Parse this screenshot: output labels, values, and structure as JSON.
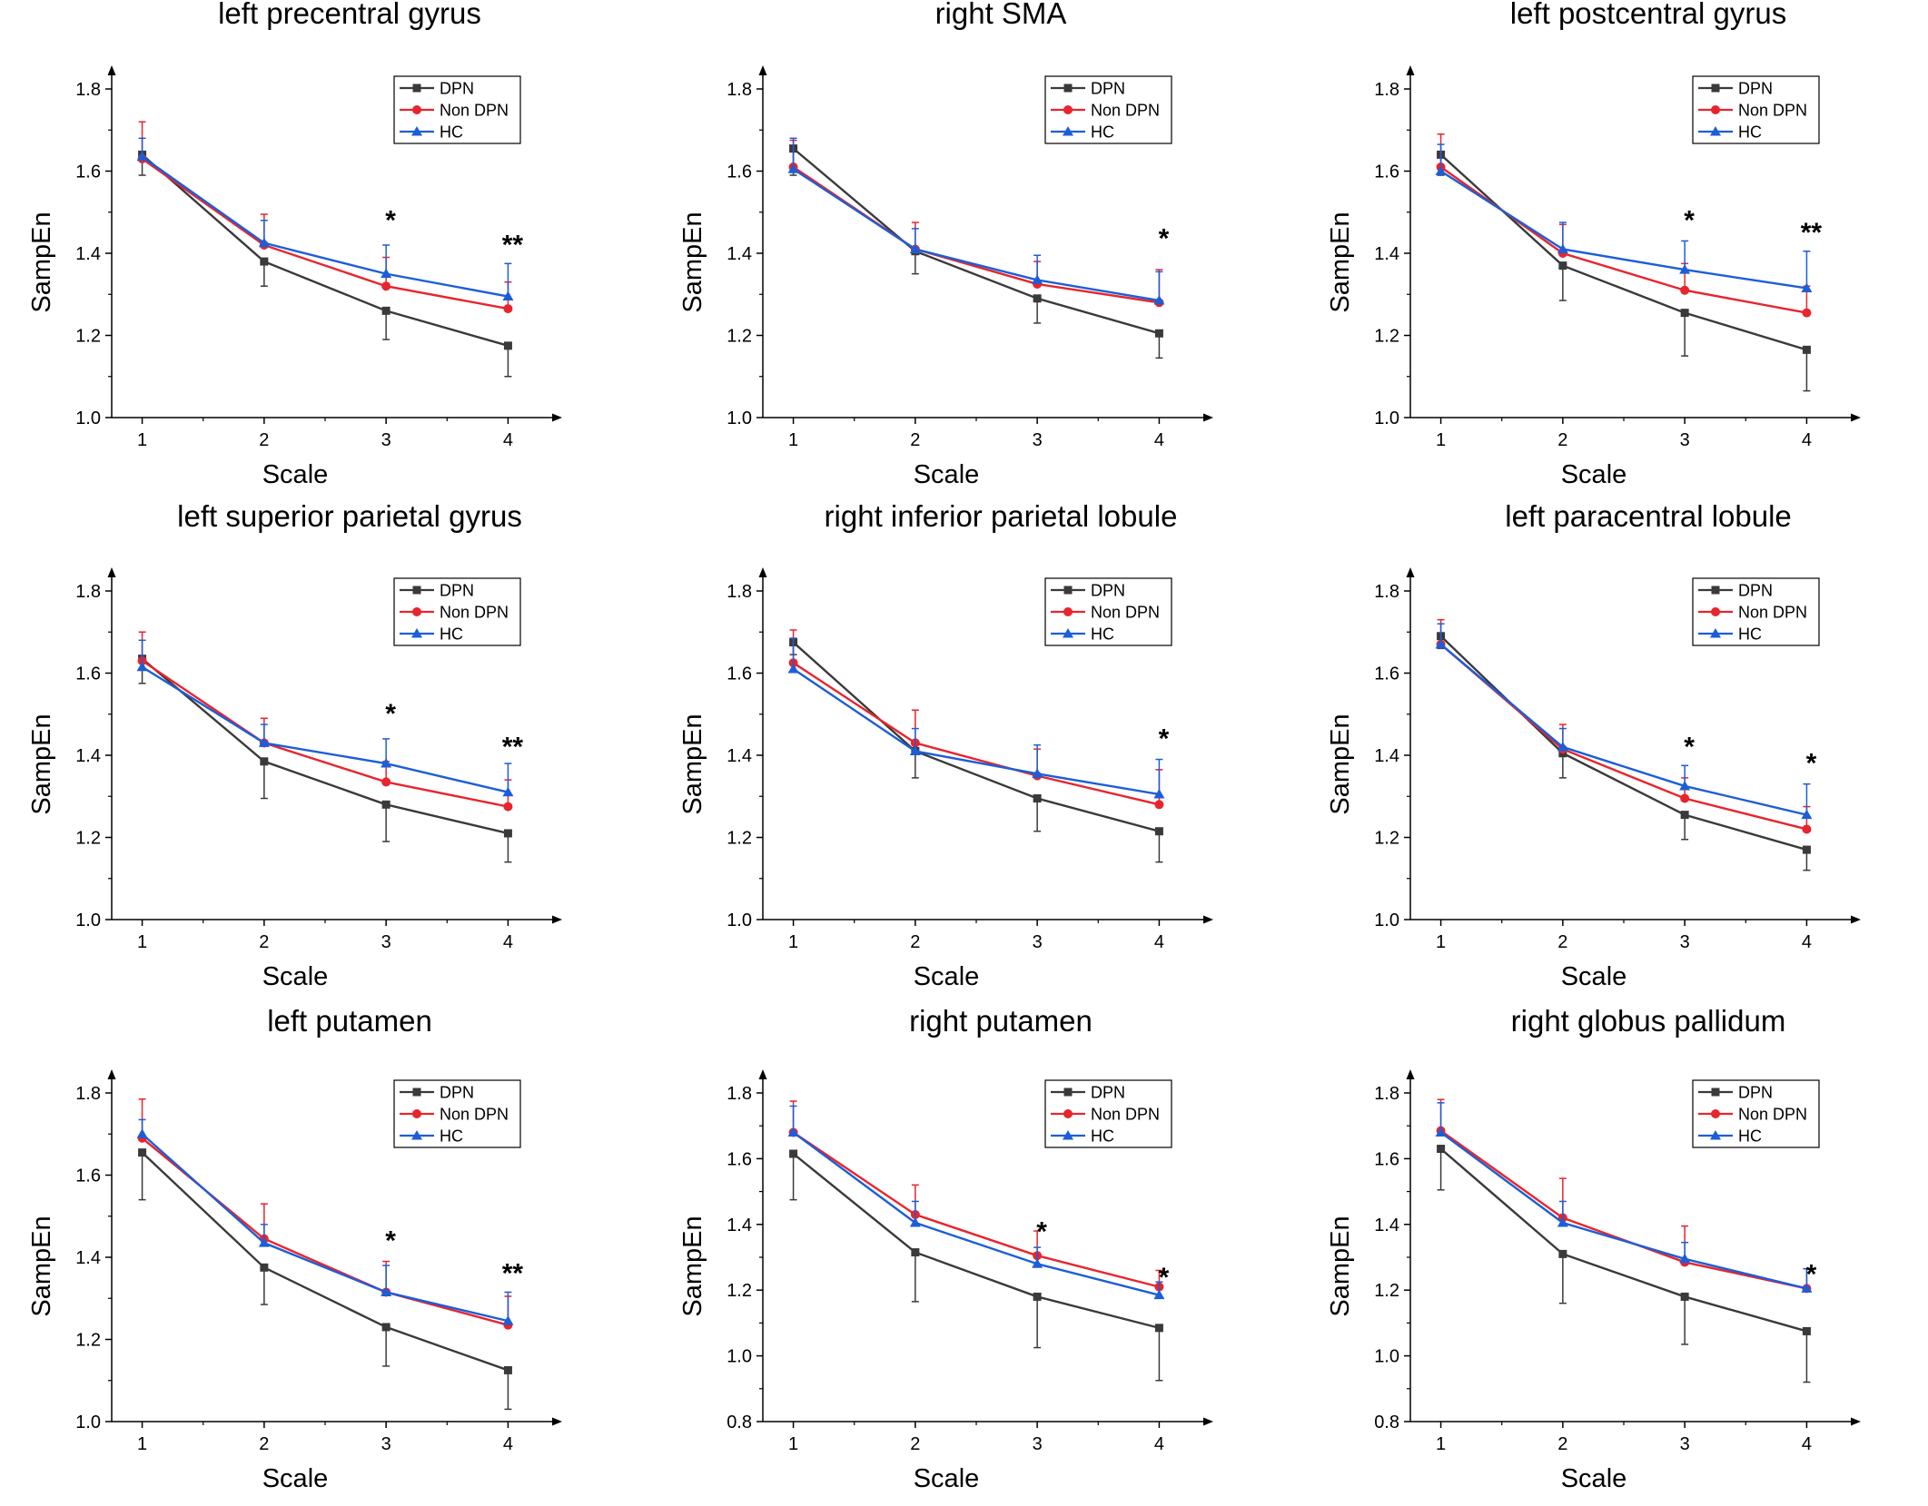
{
  "figure": {
    "background": "#ffffff"
  },
  "colors": {
    "DPN": "#3a3a3a",
    "Non DPN": "#e8242c",
    "HC": "#1c5ed8"
  },
  "markers": {
    "DPN": "square",
    "Non DPN": "circle",
    "HC": "triangle"
  },
  "chart_data": [
    {
      "type": "line",
      "title": "left precentral gyrus",
      "xlabel": "Scale",
      "ylabel": "SampEn",
      "x": [
        1,
        2,
        3,
        4
      ],
      "xticks": [
        "1",
        "2",
        "3",
        "4"
      ],
      "xlim": [
        0.75,
        4.25
      ],
      "ylim": [
        1.0,
        1.8
      ],
      "ytick_step": 0.2,
      "ytick_labels": [
        "1.0",
        "1.2",
        "1.4",
        "1.6",
        "1.8"
      ],
      "legend": [
        "DPN",
        "Non DPN",
        "HC"
      ],
      "legend_position": "top-right",
      "series": [
        {
          "name": "DPN",
          "values": [
            1.64,
            1.38,
            1.26,
            1.175
          ],
          "errors": [
            0.05,
            0.06,
            0.07,
            0.075
          ],
          "error_dir": "down"
        },
        {
          "name": "Non DPN",
          "values": [
            1.63,
            1.42,
            1.32,
            1.265
          ],
          "errors": [
            0.09,
            0.075,
            0.07,
            0.065
          ],
          "error_dir": "up"
        },
        {
          "name": "HC",
          "values": [
            1.635,
            1.425,
            1.35,
            1.295
          ],
          "errors": [
            0.045,
            0.055,
            0.07,
            0.08
          ],
          "error_dir": "up"
        }
      ],
      "annotations": [
        {
          "x": 3,
          "y": 1.49,
          "text": "*"
        },
        {
          "x": 4,
          "y": 1.43,
          "text": "**"
        }
      ]
    },
    {
      "type": "line",
      "title": "right SMA",
      "xlabel": "Scale",
      "ylabel": "SampEn",
      "x": [
        1,
        2,
        3,
        4
      ],
      "xticks": [
        "1",
        "2",
        "3",
        "4"
      ],
      "xlim": [
        0.75,
        4.25
      ],
      "ylim": [
        1.0,
        1.8
      ],
      "ytick_step": 0.2,
      "ytick_labels": [
        "1.0",
        "1.2",
        "1.4",
        "1.6",
        "1.8"
      ],
      "legend": [
        "DPN",
        "Non DPN",
        "HC"
      ],
      "legend_position": "top-right",
      "series": [
        {
          "name": "DPN",
          "values": [
            1.655,
            1.405,
            1.29,
            1.205
          ],
          "errors": [
            0.065,
            0.055,
            0.06,
            0.06
          ],
          "error_dir": "down"
        },
        {
          "name": "Non DPN",
          "values": [
            1.61,
            1.41,
            1.325,
            1.28
          ],
          "errors": [
            0.065,
            0.065,
            0.055,
            0.08
          ],
          "error_dir": "up"
        },
        {
          "name": "HC",
          "values": [
            1.605,
            1.41,
            1.335,
            1.285
          ],
          "errors": [
            0.075,
            0.05,
            0.06,
            0.07
          ],
          "error_dir": "up"
        }
      ],
      "annotations": [
        {
          "x": 4,
          "y": 1.445,
          "text": "*"
        }
      ]
    },
    {
      "type": "line",
      "title": "left postcentral gyrus",
      "xlabel": "Scale",
      "ylabel": "SampEn",
      "x": [
        1,
        2,
        3,
        4
      ],
      "xticks": [
        "1",
        "2",
        "3",
        "4"
      ],
      "xlim": [
        0.75,
        4.25
      ],
      "ylim": [
        1.0,
        1.8
      ],
      "ytick_step": 0.2,
      "ytick_labels": [
        "1.0",
        "1.2",
        "1.4",
        "1.6",
        "1.8"
      ],
      "legend": [
        "DPN",
        "Non DPN",
        "HC"
      ],
      "legend_position": "top-right",
      "series": [
        {
          "name": "DPN",
          "values": [
            1.64,
            1.37,
            1.255,
            1.165
          ],
          "errors": [
            0.05,
            0.085,
            0.105,
            0.1
          ],
          "error_dir": "down"
        },
        {
          "name": "Non DPN",
          "values": [
            1.61,
            1.4,
            1.31,
            1.255
          ],
          "errors": [
            0.08,
            0.07,
            0.065,
            0.065
          ],
          "error_dir": "up"
        },
        {
          "name": "HC",
          "values": [
            1.6,
            1.41,
            1.36,
            1.315
          ],
          "errors": [
            0.065,
            0.065,
            0.07,
            0.09
          ],
          "error_dir": "up"
        }
      ],
      "annotations": [
        {
          "x": 3,
          "y": 1.49,
          "text": "*"
        },
        {
          "x": 4,
          "y": 1.46,
          "text": "**"
        }
      ]
    },
    {
      "type": "line",
      "title": "left superior parietal gyrus",
      "xlabel": "Scale",
      "ylabel": "SampEn",
      "x": [
        1,
        2,
        3,
        4
      ],
      "xticks": [
        "1",
        "2",
        "3",
        "4"
      ],
      "xlim": [
        0.75,
        4.25
      ],
      "ylim": [
        1.0,
        1.8
      ],
      "ytick_step": 0.2,
      "ytick_labels": [
        "1.0",
        "1.2",
        "1.4",
        "1.6",
        "1.8"
      ],
      "legend": [
        "DPN",
        "Non DPN",
        "HC"
      ],
      "legend_position": "top-right",
      "series": [
        {
          "name": "DPN",
          "values": [
            1.635,
            1.385,
            1.28,
            1.21
          ],
          "errors": [
            0.06,
            0.09,
            0.09,
            0.07
          ],
          "error_dir": "down"
        },
        {
          "name": "Non DPN",
          "values": [
            1.63,
            1.43,
            1.335,
            1.275
          ],
          "errors": [
            0.07,
            0.06,
            0.05,
            0.065
          ],
          "error_dir": "up"
        },
        {
          "name": "HC",
          "values": [
            1.615,
            1.43,
            1.38,
            1.31
          ],
          "errors": [
            0.065,
            0.045,
            0.06,
            0.07
          ],
          "error_dir": "up"
        }
      ],
      "annotations": [
        {
          "x": 3,
          "y": 1.51,
          "text": "*"
        },
        {
          "x": 4,
          "y": 1.43,
          "text": "**"
        }
      ]
    },
    {
      "type": "line",
      "title": "right inferior parietal lobule",
      "xlabel": "Scale",
      "ylabel": "SampEn",
      "x": [
        1,
        2,
        3,
        4
      ],
      "xticks": [
        "1",
        "2",
        "3",
        "4"
      ],
      "xlim": [
        0.75,
        4.25
      ],
      "ylim": [
        1.0,
        1.8
      ],
      "ytick_step": 0.2,
      "ytick_labels": [
        "1.0",
        "1.2",
        "1.4",
        "1.6",
        "1.8"
      ],
      "legend": [
        "DPN",
        "Non DPN",
        "HC"
      ],
      "legend_position": "top-right",
      "series": [
        {
          "name": "DPN",
          "values": [
            1.675,
            1.41,
            1.295,
            1.215
          ],
          "errors": [
            0.03,
            0.065,
            0.08,
            0.075
          ],
          "error_dir": "down"
        },
        {
          "name": "Non DPN",
          "values": [
            1.625,
            1.43,
            1.35,
            1.28
          ],
          "errors": [
            0.08,
            0.08,
            0.065,
            0.085
          ],
          "error_dir": "up"
        },
        {
          "name": "HC",
          "values": [
            1.61,
            1.41,
            1.355,
            1.305
          ],
          "errors": [
            0.075,
            0.055,
            0.07,
            0.085
          ],
          "error_dir": "up"
        }
      ],
      "annotations": [
        {
          "x": 4,
          "y": 1.45,
          "text": "*"
        }
      ]
    },
    {
      "type": "line",
      "title": "left paracentral lobule",
      "xlabel": "Scale",
      "ylabel": "SampEn",
      "x": [
        1,
        2,
        3,
        4
      ],
      "xticks": [
        "1",
        "2",
        "3",
        "4"
      ],
      "xlim": [
        0.75,
        4.25
      ],
      "ylim": [
        1.0,
        1.8
      ],
      "ytick_step": 0.2,
      "ytick_labels": [
        "1.0",
        "1.2",
        "1.4",
        "1.6",
        "1.8"
      ],
      "legend": [
        "DPN",
        "Non DPN",
        "HC"
      ],
      "legend_position": "top-right",
      "series": [
        {
          "name": "DPN",
          "values": [
            1.69,
            1.405,
            1.255,
            1.17
          ],
          "errors": [
            0.03,
            0.06,
            0.06,
            0.05
          ],
          "error_dir": "down"
        },
        {
          "name": "Non DPN",
          "values": [
            1.67,
            1.415,
            1.295,
            1.22
          ],
          "errors": [
            0.06,
            0.06,
            0.05,
            0.055
          ],
          "error_dir": "up"
        },
        {
          "name": "HC",
          "values": [
            1.67,
            1.42,
            1.325,
            1.255
          ],
          "errors": [
            0.05,
            0.045,
            0.05,
            0.075
          ],
          "error_dir": "up"
        }
      ],
      "annotations": [
        {
          "x": 3,
          "y": 1.43,
          "text": "*"
        },
        {
          "x": 4,
          "y": 1.39,
          "text": "*"
        }
      ]
    },
    {
      "type": "line",
      "title": "left putamen",
      "xlabel": "Scale",
      "ylabel": "SampEn",
      "x": [
        1,
        2,
        3,
        4
      ],
      "xticks": [
        "1",
        "2",
        "3",
        "4"
      ],
      "xlim": [
        0.75,
        4.25
      ],
      "ylim": [
        1.0,
        1.8
      ],
      "ytick_step": 0.2,
      "ytick_labels": [
        "1.0",
        "1.2",
        "1.4",
        "1.6",
        "1.8"
      ],
      "legend": [
        "DPN",
        "Non DPN",
        "HC"
      ],
      "legend_position": "top-right",
      "series": [
        {
          "name": "DPN",
          "values": [
            1.655,
            1.375,
            1.23,
            1.125
          ],
          "errors": [
            0.115,
            0.09,
            0.095,
            0.095
          ],
          "error_dir": "down"
        },
        {
          "name": "Non DPN",
          "values": [
            1.69,
            1.445,
            1.315,
            1.235
          ],
          "errors": [
            0.095,
            0.085,
            0.075,
            0.07
          ],
          "error_dir": "up"
        },
        {
          "name": "HC",
          "values": [
            1.7,
            1.435,
            1.315,
            1.245
          ],
          "errors": [
            0.035,
            0.045,
            0.065,
            0.07
          ],
          "error_dir": "up"
        }
      ],
      "annotations": [
        {
          "x": 3,
          "y": 1.45,
          "text": "*"
        },
        {
          "x": 4,
          "y": 1.37,
          "text": "**"
        }
      ]
    },
    {
      "type": "line",
      "title": "right putamen",
      "xlabel": "Scale",
      "ylabel": "SampEn",
      "x": [
        1,
        2,
        3,
        4
      ],
      "xticks": [
        "1",
        "2",
        "3",
        "4"
      ],
      "xlim": [
        0.75,
        4.25
      ],
      "ylim": [
        0.8,
        1.8
      ],
      "ytick_step": 0.2,
      "ytick_labels": [
        "0.8",
        "1.0",
        "1.2",
        "1.4",
        "1.6",
        "1.8"
      ],
      "legend": [
        "DPN",
        "Non DPN",
        "HC"
      ],
      "legend_position": "top-right",
      "series": [
        {
          "name": "DPN",
          "values": [
            1.615,
            1.315,
            1.18,
            1.085
          ],
          "errors": [
            0.14,
            0.15,
            0.155,
            0.16
          ],
          "error_dir": "down"
        },
        {
          "name": "Non DPN",
          "values": [
            1.68,
            1.43,
            1.305,
            1.21
          ],
          "errors": [
            0.095,
            0.09,
            0.075,
            0.05
          ],
          "error_dir": "up"
        },
        {
          "name": "HC",
          "values": [
            1.68,
            1.405,
            1.28,
            1.185
          ],
          "errors": [
            0.08,
            0.065,
            0.05,
            0.04
          ],
          "error_dir": "up"
        }
      ],
      "annotations": [
        {
          "x": 3,
          "y": 1.39,
          "text": "*"
        },
        {
          "x": 4,
          "y": 1.25,
          "text": "*"
        }
      ]
    },
    {
      "type": "line",
      "title": "right globus pallidum",
      "xlabel": "Scale",
      "ylabel": "SampEn",
      "x": [
        1,
        2,
        3,
        4
      ],
      "xticks": [
        "1",
        "2",
        "3",
        "4"
      ],
      "xlim": [
        0.75,
        4.25
      ],
      "ylim": [
        0.8,
        1.8
      ],
      "ytick_step": 0.2,
      "ytick_labels": [
        "0.8",
        "1.0",
        "1.2",
        "1.4",
        "1.6",
        "1.8"
      ],
      "legend": [
        "DPN",
        "Non DPN",
        "HC"
      ],
      "legend_position": "top-right",
      "series": [
        {
          "name": "DPN",
          "values": [
            1.63,
            1.31,
            1.18,
            1.075
          ],
          "errors": [
            0.125,
            0.15,
            0.145,
            0.155
          ],
          "error_dir": "down"
        },
        {
          "name": "Non DPN",
          "values": [
            1.685,
            1.42,
            1.285,
            1.205
          ],
          "errors": [
            0.095,
            0.12,
            0.11,
            0.06
          ],
          "error_dir": "up"
        },
        {
          "name": "HC",
          "values": [
            1.68,
            1.405,
            1.295,
            1.205
          ],
          "errors": [
            0.09,
            0.065,
            0.05,
            0.06
          ],
          "error_dir": "up"
        }
      ],
      "annotations": [
        {
          "x": 4,
          "y": 1.26,
          "text": "*"
        }
      ]
    }
  ]
}
